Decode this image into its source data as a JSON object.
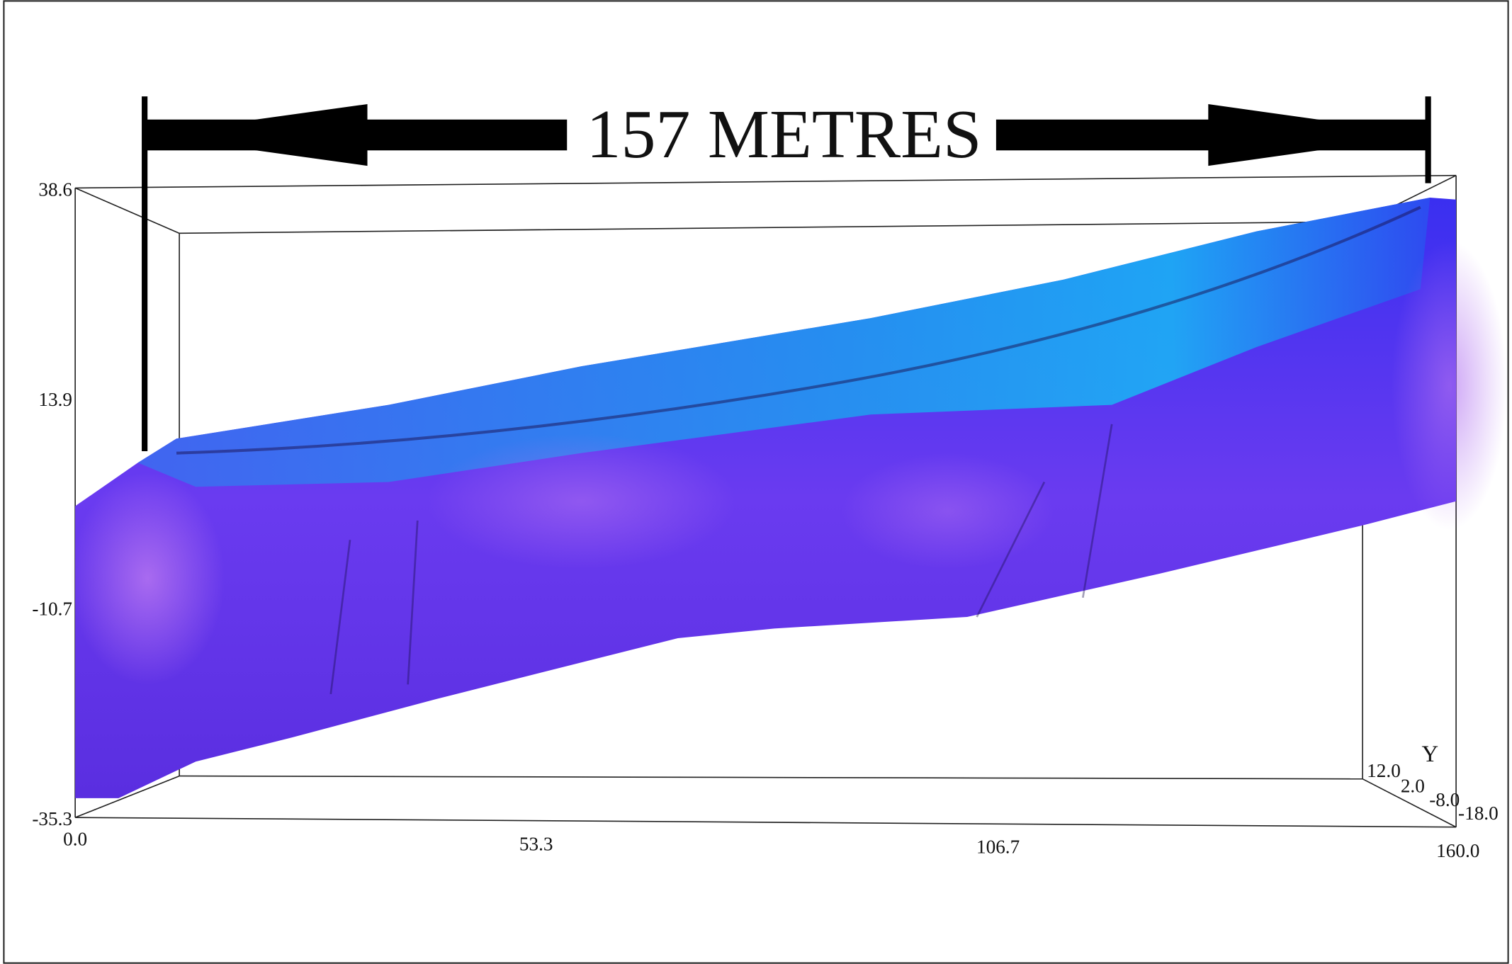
{
  "annotation": "157 METRES",
  "axes": {
    "vertical_ticks": [
      "38.6",
      "13.9",
      "-10.7",
      "-35.3"
    ],
    "horizontal_ticks": [
      "0.0",
      "53.3",
      "106.7",
      "160.0"
    ],
    "depth_label": "Y",
    "depth_ticks": [
      "12.0",
      "2.0",
      "-8.0",
      "-18.0"
    ]
  }
}
